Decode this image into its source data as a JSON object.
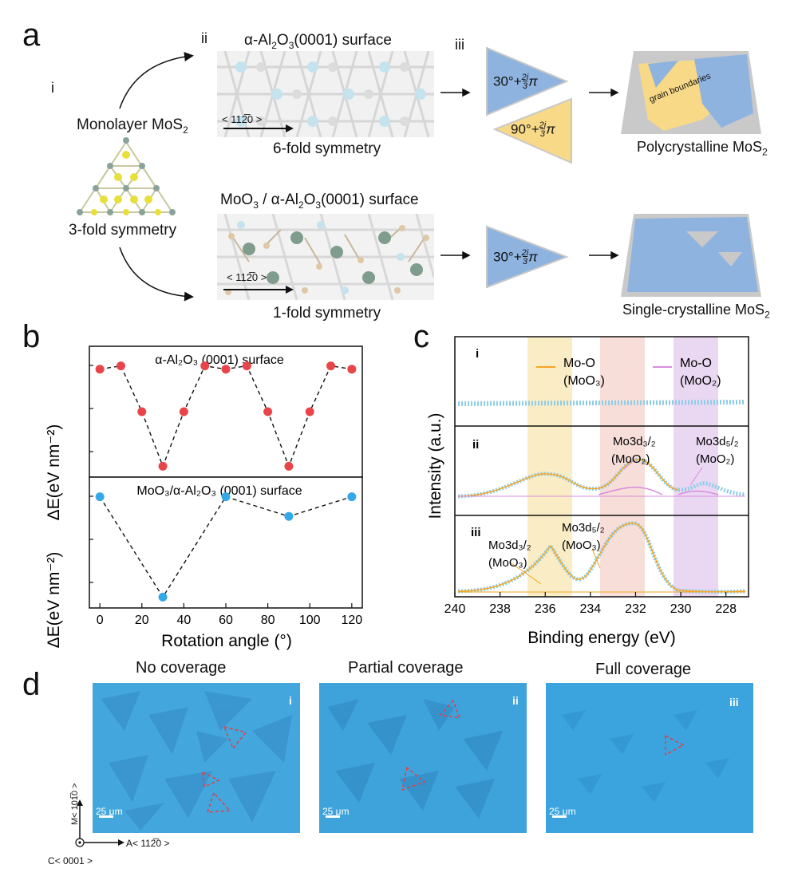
{
  "panel_a": {
    "label": "a",
    "sub_i": "i",
    "sub_ii": "ii",
    "sub_iii": "iii",
    "monolayer": "Monolayer MoS",
    "monolayer_sub": "2",
    "three_fold": "3-fold symmetry",
    "top_surface_title": "α-Al",
    "top_surface_title_sub1": "2",
    "top_surface_title_mid": "O",
    "top_surface_title_sub2": "3",
    "top_surface_title_end": "(0001) surface",
    "six_fold": "6-fold symmetry",
    "bottom_surface_title": "MoO",
    "bottom_surface_title_sub1": "3",
    "bottom_surface_title_mid": " / α-Al",
    "bottom_surface_title_sub2": "2",
    "bottom_surface_title_mid2": "O",
    "bottom_surface_title_sub3": "3",
    "bottom_surface_title_end": "(0001) surface",
    "one_fold": "1-fold symmetry",
    "direction": "< 11⁠2̅⁠0 >",
    "tri_blue": "30°+",
    "tri_yellow": "90°+",
    "frac_num": "2i",
    "frac_den": "3",
    "pi": "π",
    "grain": "grain boundaries",
    "poly": "Polycrystalline MoS",
    "poly_sub": "2",
    "single": "Single-crystalline MoS",
    "single_sub": "2"
  },
  "panel_b": {
    "label": "b",
    "top_title": "α-Al₂O₃ (0001) surface",
    "bottom_title": "MoO₃/α-Al₂O₃ (0001) surface",
    "ylabel": "ΔE(eV nm⁻²)",
    "xlabel": "Rotation angle (°)",
    "xticks": [
      "0",
      "20",
      "40",
      "60",
      "80",
      "100",
      "120"
    ]
  },
  "panel_c": {
    "label": "c",
    "ylabel": "Intensity (a.u.)",
    "xlabel": "Binding energy (eV)",
    "xticks": [
      "240",
      "238",
      "236",
      "234",
      "232",
      "230",
      "228"
    ],
    "row_i": "i",
    "row_ii": "ii",
    "row_iii": "iii",
    "legend_moo3_a": "Mo-O",
    "legend_moo3_b": "(MoO₃)",
    "legend_moo2_a": "Mo-O",
    "legend_moo2_b": "(MoO₂)",
    "ann1_a": "Mo3d₃/₂",
    "ann1_b": "(MoO₂)",
    "ann2_a": "Mo3d₅/₂",
    "ann2_b": "(MoO₂)",
    "ann3_a": "Mo3d₅/₂",
    "ann3_b": "(MoO₃)",
    "ann4_a": "Mo3d₃/₂",
    "ann4_b": "(MoO₃)",
    "colors": {
      "moo3": "#f5a623",
      "moo2": "#d98be0",
      "data": "#8ccde8"
    }
  },
  "panel_d": {
    "label": "d",
    "titles": [
      "No coverage",
      "Partial coverage",
      "Full coverage"
    ],
    "romans": [
      "i",
      "ii",
      "iii"
    ],
    "scale": "25 μm",
    "axis_m": "M< 10⁠1̅⁠0 >",
    "axis_a": "A< 11⁠2̅⁠0 >",
    "axis_c": "C< 0001 >"
  },
  "chart_data": [
    {
      "type": "scatter",
      "title": "α-Al₂O₃ (0001) surface",
      "xlabel": "Rotation angle (°)",
      "ylabel": "ΔE(eV nm⁻²)",
      "x": [
        0,
        10,
        20,
        30,
        40,
        50,
        60,
        70,
        80,
        90,
        100,
        110,
        120
      ],
      "y": [
        0.89,
        0.92,
        0.5,
        0.0,
        0.5,
        0.92,
        0.89,
        0.92,
        0.5,
        0.0,
        0.5,
        0.92,
        0.89
      ],
      "xlim": [
        -5,
        125
      ],
      "ylim": [
        -0.1,
        1.1
      ],
      "color": "#e8454a"
    },
    {
      "type": "scatter",
      "title": "MoO₃/α-Al₂O₃ (0001) surface",
      "xlabel": "Rotation angle (°)",
      "ylabel": "ΔE(eV nm⁻²)",
      "x": [
        0,
        30,
        60,
        90,
        120
      ],
      "y": [
        0.92,
        0.0,
        0.92,
        0.74,
        0.92
      ],
      "xlim": [
        -5,
        125
      ],
      "ylim": [
        -0.1,
        1.1
      ],
      "color": "#35a8e8"
    }
  ]
}
